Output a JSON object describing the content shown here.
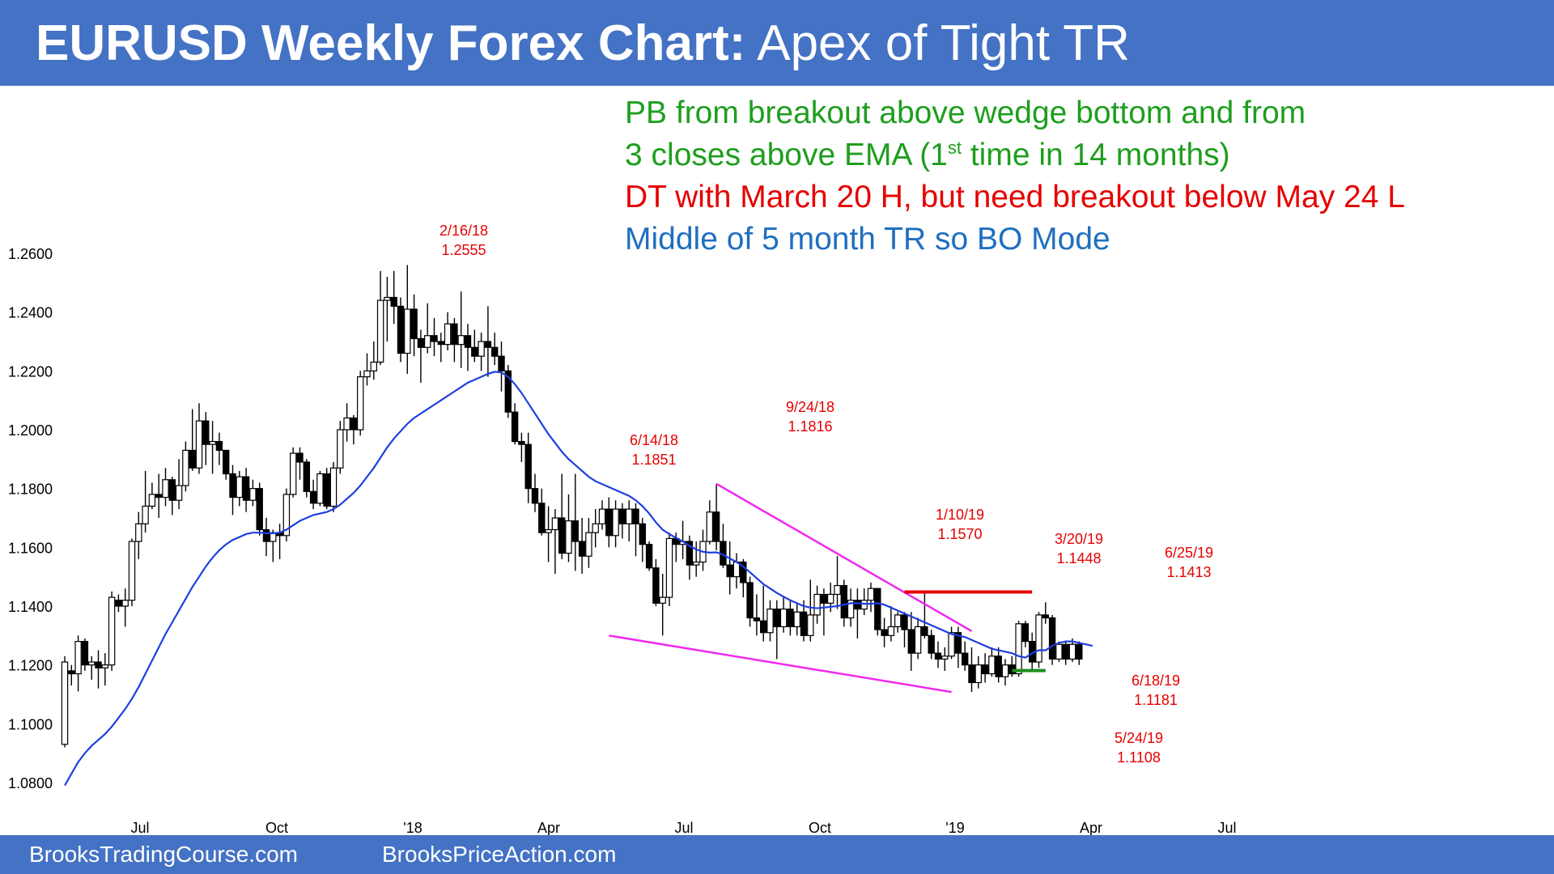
{
  "header": {
    "title_bold": "EURUSD Weekly Forex Chart:",
    "title_rest": " Apex of Tight TR",
    "bg_color": "#4472C4"
  },
  "footer": {
    "left_text": "BrooksTradingCourse.com",
    "right_text": "BrooksPriceAction.com"
  },
  "commentary": {
    "line1": "PB from breakout above wedge bottom and from",
    "line2_pre": "3 closes above EMA (1",
    "line2_sup": "st",
    "line2_post": " time in 14 months)",
    "line3": "DT with March 20 H, but need breakout below May 24 L",
    "line4": "Middle of 5 month TR so BO Mode",
    "colors": {
      "green": "#1E9E1E",
      "red": "#E60000",
      "blue": "#1F6FBF"
    }
  },
  "chart_data": {
    "type": "candlestick",
    "title": "EURUSD Weekly Forex Chart",
    "x_tick_labels": [
      "Jul",
      "Oct",
      "'18",
      "Apr",
      "Jul",
      "Oct",
      "'19",
      "Apr",
      "Jul"
    ],
    "y_tick_labels": [
      "1.0800",
      "1.1000",
      "1.1200",
      "1.1400",
      "1.1600",
      "1.1800",
      "1.2000",
      "1.2200",
      "1.2400",
      "1.2600"
    ],
    "y_range": [
      1.075,
      1.265
    ],
    "candles": [
      [
        1.093,
        1.121,
        1.092,
        1.123
      ],
      [
        1.118,
        1.117,
        1.113,
        1.12
      ],
      [
        1.117,
        1.128,
        1.111,
        1.13
      ],
      [
        1.128,
        1.12,
        1.118,
        1.129
      ],
      [
        1.12,
        1.121,
        1.115,
        1.123
      ],
      [
        1.121,
        1.119,
        1.112,
        1.125
      ],
      [
        1.119,
        1.12,
        1.113,
        1.124
      ],
      [
        1.12,
        1.143,
        1.118,
        1.145
      ],
      [
        1.142,
        1.14,
        1.138,
        1.144
      ],
      [
        1.14,
        1.142,
        1.133,
        1.146
      ],
      [
        1.142,
        1.162,
        1.14,
        1.163
      ],
      [
        1.162,
        1.168,
        1.156,
        1.172
      ],
      [
        1.168,
        1.174,
        1.165,
        1.186
      ],
      [
        1.174,
        1.178,
        1.173,
        1.182
      ],
      [
        1.178,
        1.177,
        1.17,
        1.185
      ],
      [
        1.177,
        1.183,
        1.174,
        1.187
      ],
      [
        1.183,
        1.176,
        1.171,
        1.184
      ],
      [
        1.176,
        1.181,
        1.173,
        1.19
      ],
      [
        1.181,
        1.193,
        1.179,
        1.196
      ],
      [
        1.193,
        1.187,
        1.186,
        1.207
      ],
      [
        1.187,
        1.203,
        1.185,
        1.209
      ],
      [
        1.203,
        1.195,
        1.188,
        1.206
      ],
      [
        1.195,
        1.196,
        1.185,
        1.203
      ],
      [
        1.196,
        1.193,
        1.188,
        1.199
      ],
      [
        1.193,
        1.185,
        1.183,
        1.192
      ],
      [
        1.185,
        1.177,
        1.171,
        1.188
      ],
      [
        1.177,
        1.184,
        1.174,
        1.186
      ],
      [
        1.184,
        1.176,
        1.172,
        1.187
      ],
      [
        1.176,
        1.18,
        1.174,
        1.183
      ],
      [
        1.18,
        1.166,
        1.164,
        1.182
      ],
      [
        1.166,
        1.162,
        1.157,
        1.17
      ],
      [
        1.162,
        1.165,
        1.155,
        1.166
      ],
      [
        1.165,
        1.164,
        1.156,
        1.168
      ],
      [
        1.164,
        1.178,
        1.162,
        1.18
      ],
      [
        1.178,
        1.192,
        1.177,
        1.194
      ],
      [
        1.192,
        1.189,
        1.183,
        1.194
      ],
      [
        1.189,
        1.179,
        1.177,
        1.19
      ],
      [
        1.179,
        1.175,
        1.173,
        1.183
      ],
      [
        1.175,
        1.185,
        1.174,
        1.186
      ],
      [
        1.185,
        1.174,
        1.173,
        1.187
      ],
      [
        1.174,
        1.187,
        1.172,
        1.189
      ],
      [
        1.187,
        1.2,
        1.185,
        1.203
      ],
      [
        1.2,
        1.204,
        1.196,
        1.209
      ],
      [
        1.204,
        1.2,
        1.195,
        1.205
      ],
      [
        1.2,
        1.218,
        1.198,
        1.22
      ],
      [
        1.218,
        1.22,
        1.215,
        1.226
      ],
      [
        1.22,
        1.223,
        1.217,
        1.23
      ],
      [
        1.223,
        1.244,
        1.222,
        1.254
      ],
      [
        1.244,
        1.245,
        1.23,
        1.252
      ],
      [
        1.245,
        1.242,
        1.236,
        1.254
      ],
      [
        1.242,
        1.226,
        1.223,
        1.245
      ],
      [
        1.226,
        1.241,
        1.219,
        1.256
      ],
      [
        1.241,
        1.231,
        1.225,
        1.246
      ],
      [
        1.231,
        1.228,
        1.216,
        1.234
      ],
      [
        1.228,
        1.232,
        1.226,
        1.243
      ],
      [
        1.232,
        1.23,
        1.225,
        1.238
      ],
      [
        1.23,
        1.229,
        1.223,
        1.233
      ],
      [
        1.229,
        1.236,
        1.227,
        1.24
      ],
      [
        1.236,
        1.229,
        1.223,
        1.238
      ],
      [
        1.229,
        1.232,
        1.221,
        1.247
      ],
      [
        1.232,
        1.228,
        1.22,
        1.236
      ],
      [
        1.228,
        1.225,
        1.223,
        1.234
      ],
      [
        1.225,
        1.23,
        1.22,
        1.233
      ],
      [
        1.23,
        1.228,
        1.218,
        1.242
      ],
      [
        1.228,
        1.225,
        1.222,
        1.233
      ],
      [
        1.225,
        1.22,
        1.213,
        1.23
      ],
      [
        1.22,
        1.206,
        1.204,
        1.222
      ],
      [
        1.206,
        1.196,
        1.195,
        1.209
      ],
      [
        1.196,
        1.195,
        1.189,
        1.199
      ],
      [
        1.195,
        1.18,
        1.175,
        1.199
      ],
      [
        1.18,
        1.175,
        1.172,
        1.185
      ],
      [
        1.175,
        1.165,
        1.164,
        1.18
      ],
      [
        1.165,
        1.166,
        1.155,
        1.174
      ],
      [
        1.166,
        1.17,
        1.151,
        1.173
      ],
      [
        1.17,
        1.158,
        1.156,
        1.185
      ],
      [
        1.158,
        1.169,
        1.155,
        1.178
      ],
      [
        1.169,
        1.162,
        1.152,
        1.185
      ],
      [
        1.162,
        1.157,
        1.151,
        1.17
      ],
      [
        1.157,
        1.165,
        1.153,
        1.17
      ],
      [
        1.165,
        1.168,
        1.16,
        1.173
      ],
      [
        1.168,
        1.173,
        1.166,
        1.176
      ],
      [
        1.173,
        1.164,
        1.16,
        1.177
      ],
      [
        1.164,
        1.173,
        1.16,
        1.176
      ],
      [
        1.173,
        1.168,
        1.163,
        1.175
      ],
      [
        1.168,
        1.173,
        1.162,
        1.176
      ],
      [
        1.173,
        1.168,
        1.157,
        1.175
      ],
      [
        1.168,
        1.161,
        1.155,
        1.17
      ],
      [
        1.161,
        1.153,
        1.152,
        1.162
      ],
      [
        1.153,
        1.141,
        1.14,
        1.156
      ],
      [
        1.141,
        1.143,
        1.13,
        1.151
      ],
      [
        1.143,
        1.163,
        1.14,
        1.165
      ],
      [
        1.163,
        1.161,
        1.155,
        1.165
      ],
      [
        1.161,
        1.162,
        1.156,
        1.169
      ],
      [
        1.162,
        1.154,
        1.149,
        1.164
      ],
      [
        1.154,
        1.155,
        1.15,
        1.162
      ],
      [
        1.155,
        1.162,
        1.152,
        1.166
      ],
      [
        1.162,
        1.172,
        1.161,
        1.176
      ],
      [
        1.172,
        1.162,
        1.159,
        1.1816
      ],
      [
        1.162,
        1.154,
        1.153,
        1.168
      ],
      [
        1.154,
        1.15,
        1.144,
        1.162
      ],
      [
        1.15,
        1.155,
        1.146,
        1.158
      ],
      [
        1.155,
        1.148,
        1.143,
        1.156
      ],
      [
        1.148,
        1.136,
        1.133,
        1.15
      ],
      [
        1.136,
        1.135,
        1.13,
        1.144
      ],
      [
        1.135,
        1.131,
        1.128,
        1.147
      ],
      [
        1.131,
        1.139,
        1.128,
        1.142
      ],
      [
        1.139,
        1.133,
        1.122,
        1.142
      ],
      [
        1.133,
        1.139,
        1.131,
        1.143
      ],
      [
        1.139,
        1.133,
        1.13,
        1.142
      ],
      [
        1.133,
        1.138,
        1.13,
        1.141
      ],
      [
        1.138,
        1.13,
        1.128,
        1.142
      ],
      [
        1.13,
        1.137,
        1.128,
        1.149
      ],
      [
        1.137,
        1.144,
        1.134,
        1.147
      ],
      [
        1.144,
        1.141,
        1.13,
        1.146
      ],
      [
        1.141,
        1.144,
        1.138,
        1.148
      ],
      [
        1.144,
        1.147,
        1.139,
        1.157
      ],
      [
        1.147,
        1.136,
        1.133,
        1.149
      ],
      [
        1.136,
        1.142,
        1.133,
        1.146
      ],
      [
        1.142,
        1.139,
        1.129,
        1.146
      ],
      [
        1.139,
        1.142,
        1.137,
        1.146
      ],
      [
        1.142,
        1.146,
        1.138,
        1.148
      ],
      [
        1.146,
        1.132,
        1.13,
        1.146
      ],
      [
        1.132,
        1.13,
        1.126,
        1.136
      ],
      [
        1.13,
        1.133,
        1.128,
        1.14
      ],
      [
        1.133,
        1.137,
        1.131,
        1.138
      ],
      [
        1.137,
        1.132,
        1.126,
        1.138
      ],
      [
        1.132,
        1.124,
        1.118,
        1.138
      ],
      [
        1.124,
        1.133,
        1.122,
        1.136
      ],
      [
        1.133,
        1.13,
        1.129,
        1.1448
      ],
      [
        1.13,
        1.124,
        1.122,
        1.132
      ],
      [
        1.124,
        1.122,
        1.119,
        1.128
      ],
      [
        1.122,
        1.123,
        1.118,
        1.126
      ],
      [
        1.123,
        1.131,
        1.122,
        1.133
      ],
      [
        1.131,
        1.124,
        1.119,
        1.133
      ],
      [
        1.124,
        1.12,
        1.118,
        1.128
      ],
      [
        1.12,
        1.114,
        1.1108,
        1.126
      ],
      [
        1.114,
        1.12,
        1.112,
        1.123
      ],
      [
        1.12,
        1.117,
        1.114,
        1.124
      ],
      [
        1.117,
        1.123,
        1.116,
        1.126
      ],
      [
        1.123,
        1.116,
        1.114,
        1.126
      ],
      [
        1.116,
        1.12,
        1.113,
        1.122
      ],
      [
        1.12,
        1.117,
        1.116,
        1.123
      ],
      [
        1.117,
        1.134,
        1.116,
        1.135
      ],
      [
        1.134,
        1.128,
        1.126,
        1.135
      ],
      [
        1.128,
        1.121,
        1.1181,
        1.131
      ],
      [
        1.121,
        1.137,
        1.119,
        1.138
      ],
      [
        1.137,
        1.136,
        1.134,
        1.1413
      ],
      [
        1.136,
        1.122,
        1.12,
        1.137
      ],
      [
        1.122,
        1.127,
        1.121,
        1.128
      ],
      [
        1.127,
        1.122,
        1.12,
        1.128
      ],
      [
        1.122,
        1.127,
        1.121,
        1.129
      ],
      [
        1.127,
        1.122,
        1.12,
        1.128
      ]
    ],
    "ema": [
      1.079,
      1.083,
      1.087,
      1.09,
      1.0925,
      1.0945,
      1.0965,
      1.099,
      1.102,
      1.105,
      1.1085,
      1.1125,
      1.117,
      1.1215,
      1.126,
      1.1305,
      1.1345,
      1.1385,
      1.1425,
      1.1465,
      1.15,
      1.1535,
      1.1565,
      1.159,
      1.161,
      1.1625,
      1.1635,
      1.1645,
      1.165,
      1.165,
      1.1648,
      1.1648,
      1.165,
      1.166,
      1.1675,
      1.169,
      1.17,
      1.171,
      1.1715,
      1.172,
      1.173,
      1.1745,
      1.1765,
      1.1785,
      1.181,
      1.184,
      1.187,
      1.1905,
      1.194,
      1.197,
      1.1995,
      1.202,
      1.204,
      1.2055,
      1.207,
      1.2085,
      1.21,
      1.2115,
      1.213,
      1.2145,
      1.216,
      1.217,
      1.218,
      1.219,
      1.2197,
      1.2195,
      1.218,
      1.2155,
      1.2125,
      1.209,
      1.2055,
      1.202,
      1.1985,
      1.1955,
      1.1925,
      1.19,
      1.188,
      1.186,
      1.184,
      1.1825,
      1.1815,
      1.1805,
      1.1795,
      1.1785,
      1.1775,
      1.176,
      1.174,
      1.1715,
      1.1685,
      1.166,
      1.1645,
      1.1632,
      1.162,
      1.1605,
      1.1593,
      1.1585,
      1.1582,
      1.1583,
      1.1575,
      1.1562,
      1.155,
      1.1535,
      1.1515,
      1.1495,
      1.1475,
      1.146,
      1.1445,
      1.1432,
      1.142,
      1.141,
      1.14,
      1.1395,
      1.1393,
      1.1395,
      1.1398,
      1.14,
      1.1405,
      1.141,
      1.141,
      1.1408,
      1.1408,
      1.141,
      1.1405,
      1.1395,
      1.1385,
      1.1375,
      1.1365,
      1.1355,
      1.1345,
      1.1335,
      1.1325,
      1.1315,
      1.1305,
      1.13,
      1.1295,
      1.1285,
      1.1275,
      1.1265,
      1.1255,
      1.125,
      1.1245,
      1.124,
      1.123,
      1.1225,
      1.124,
      1.125,
      1.125,
      1.1265,
      1.1275,
      1.128,
      1.128,
      1.1275,
      1.127,
      1.1265
    ],
    "annotations": [
      {
        "date": "2/16/18",
        "value": "1.2555"
      },
      {
        "date": "6/14/18",
        "value": "1.1851"
      },
      {
        "date": "9/24/18",
        "value": "1.1816"
      },
      {
        "date": "1/10/19",
        "value": "1.1570"
      },
      {
        "date": "3/20/19",
        "value": "1.1448"
      },
      {
        "date": "6/25/19",
        "value": "1.1413"
      },
      {
        "date": "6/18/19",
        "value": "1.1181"
      },
      {
        "date": "5/24/19",
        "value": "1.1108"
      }
    ],
    "trendlines": [
      {
        "name": "wedge-top",
        "color": "#F028F0",
        "from": [
          "9/24/18",
          1.1816
        ],
        "to": [
          "6/2019",
          1.1315
        ]
      },
      {
        "name": "wedge-bottom",
        "color": "#F028F0",
        "from": [
          "8/2018",
          1.13
        ],
        "to": [
          "5/24/19",
          1.1108
        ]
      },
      {
        "name": "double-top-line",
        "color": "#E60000",
        "level": 1.1448
      },
      {
        "name": "support-line",
        "color": "#1E8E1E",
        "level": 1.1181
      }
    ],
    "colors": {
      "ema": "#1F3FE0",
      "annotation": "#E60000",
      "candle": "#000000"
    }
  }
}
